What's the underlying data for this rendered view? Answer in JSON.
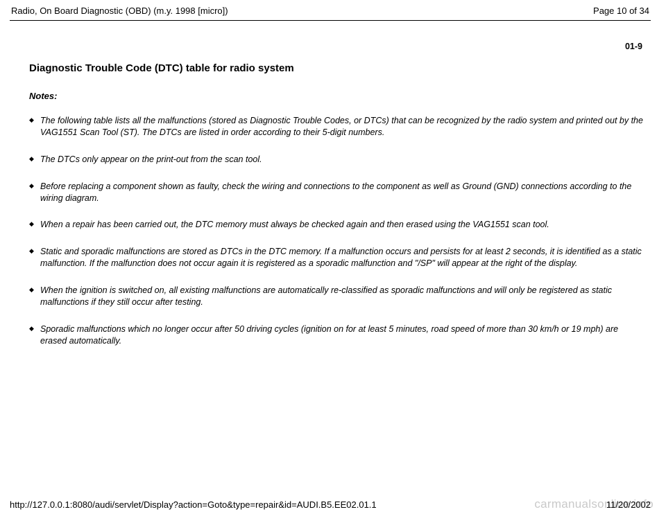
{
  "header": {
    "left": "Radio, On Board Diagnostic (OBD) (m.y. 1998 [micro])",
    "right": "Page 10 of 34"
  },
  "page_number": "01-9",
  "section_title": "Diagnostic Trouble Code (DTC) table for radio system",
  "notes_label": "Notes:",
  "notes": [
    "The following table lists all the malfunctions (stored as Diagnostic Trouble Codes, or DTCs) that can be recognized by the radio system and printed out by the VAG1551 Scan Tool (ST). The DTCs are listed in order according to their 5-digit numbers.",
    "The DTCs only appear on the print-out from the scan tool.",
    "Before replacing a component shown as faulty, check the wiring and connections to the component as well as Ground (GND) connections according to the wiring diagram.",
    "When a repair has been carried out, the DTC memory must always be checked again and then erased using the VAG1551 scan tool.",
    "Static and sporadic malfunctions are stored as DTCs in the DTC memory. If a malfunction occurs and persists for at least 2 seconds, it is identified as a static malfunction. If the malfunction does not occur again it is registered as a sporadic malfunction and \"/SP\" will appear at the right of the display.",
    "When the ignition is switched on, all existing malfunctions are automatically re-classified as sporadic malfunctions and will only be registered as static malfunctions if they still occur after testing.",
    "Sporadic malfunctions which no longer occur after 50 driving cycles (ignition on for at least 5 minutes, road speed of more than 30 km/h or 19 mph) are erased automatically."
  ],
  "footer": {
    "url": "http://127.0.0.1:8080/audi/servlet/Display?action=Goto&type=repair&id=AUDI.B5.EE02.01.1",
    "date": "11/20/2002"
  },
  "watermark": "carmanualsonline.info"
}
